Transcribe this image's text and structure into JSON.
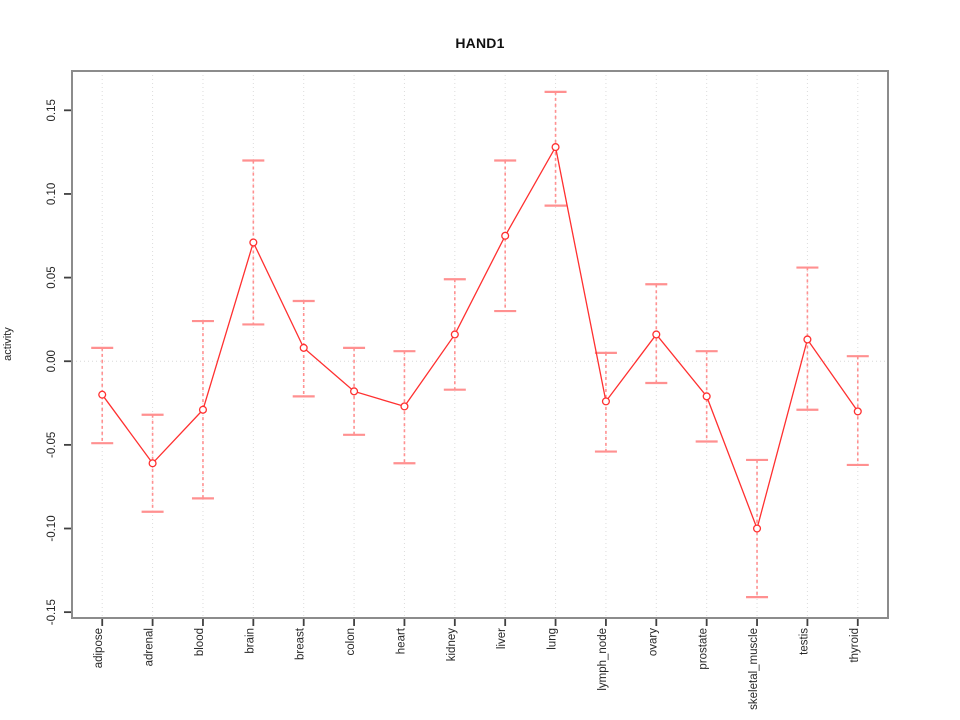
{
  "title": "HAND1",
  "chart_data": {
    "type": "line",
    "title": "HAND1",
    "xlabel": "",
    "ylabel": "activity",
    "legend": "none",
    "grid": "dotted vertical gridline at each category; dotted horizontal line at y=0",
    "marker": "open-circle",
    "error_bars": "dashed vertical line with solid caps",
    "categories": [
      "adipose",
      "adrenal",
      "blood",
      "brain",
      "breast",
      "colon",
      "heart",
      "kidney",
      "liver",
      "lung",
      "lymph_node",
      "ovary",
      "prostate",
      "skeletal_muscle",
      "testis",
      "thyroid"
    ],
    "series": [
      {
        "name": "activity",
        "values": [
          -0.02,
          -0.061,
          -0.029,
          0.071,
          0.008,
          -0.018,
          -0.027,
          0.016,
          0.075,
          0.128,
          -0.024,
          0.016,
          -0.021,
          -0.1,
          0.013,
          -0.03
        ],
        "upper": [
          0.008,
          -0.032,
          0.024,
          0.12,
          0.036,
          0.008,
          0.006,
          0.049,
          0.12,
          0.161,
          0.005,
          0.046,
          0.006,
          -0.059,
          0.056,
          0.003
        ],
        "lower": [
          -0.049,
          -0.09,
          -0.082,
          0.022,
          -0.021,
          -0.044,
          -0.061,
          -0.017,
          0.03,
          0.093,
          -0.054,
          -0.013,
          -0.048,
          -0.141,
          -0.029,
          -0.062
        ]
      }
    ],
    "yticks": [
      0.15,
      0.1,
      0.05,
      0.0,
      -0.05,
      -0.1,
      -0.15
    ],
    "ytick_labels": [
      "0.15",
      "0.10",
      "0.05",
      "0.00",
      "-0.05",
      "-0.10",
      "-0.15"
    ],
    "ylim": [
      -0.1535,
      0.1735
    ],
    "xlim": [
      0.4,
      16.6
    ],
    "colors": {
      "line": "#ff3030",
      "point": "#ff3030",
      "error_bar": "#ff9090",
      "grid": "#dcdcdc",
      "zero_line": "#d8d8d8",
      "frame": "#8c8c8c",
      "tick": "#404040",
      "text": "#262626",
      "title": "#111111",
      "background": "#ffffff"
    }
  }
}
